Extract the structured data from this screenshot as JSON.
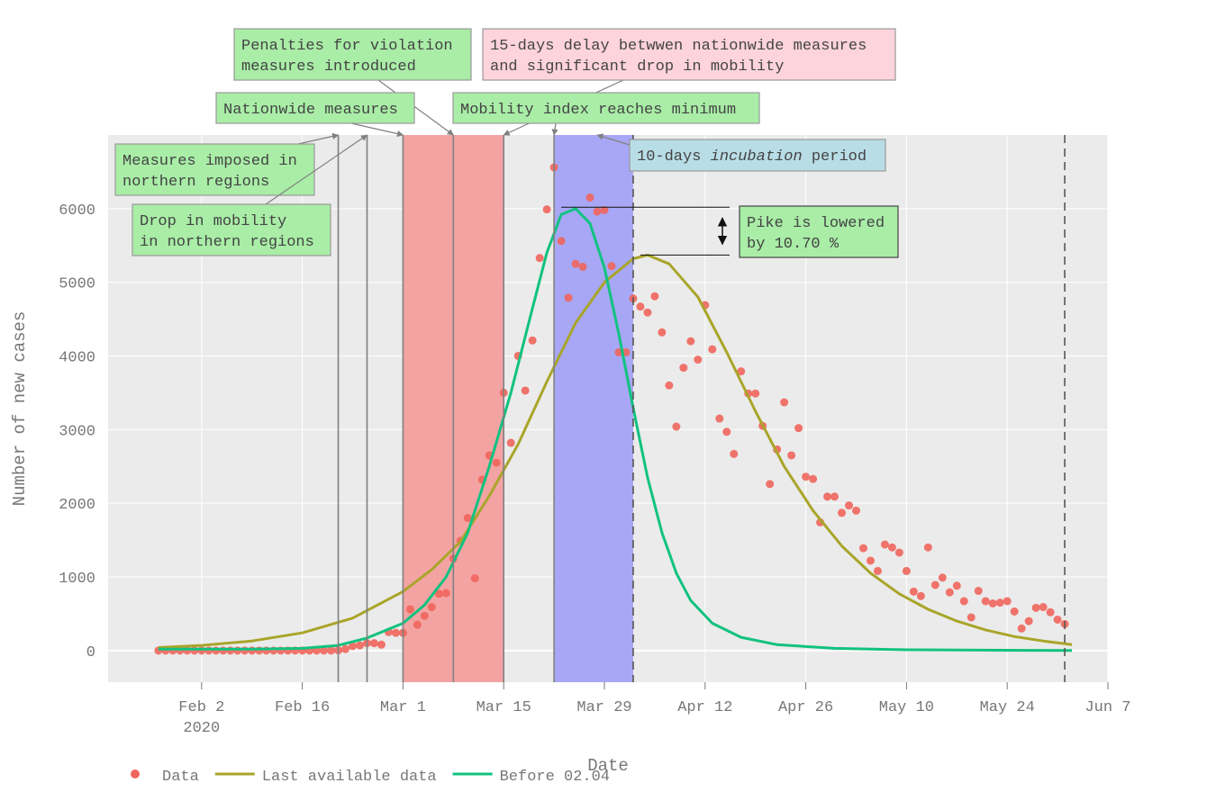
{
  "chart_data": {
    "type": "scatter",
    "xlabel": "Date",
    "ylabel": "Number of new cases",
    "x_range": [
      "2020-01-20",
      "2020-06-07"
    ],
    "ylim": [
      -430,
      7000
    ],
    "x_ticks": [
      {
        "date": "2020-02-02",
        "label": "Feb 2",
        "sublabel": "2020"
      },
      {
        "date": "2020-02-16",
        "label": "Feb 16"
      },
      {
        "date": "2020-03-01",
        "label": "Mar 1"
      },
      {
        "date": "2020-03-15",
        "label": "Mar 15"
      },
      {
        "date": "2020-03-29",
        "label": "Mar 29"
      },
      {
        "date": "2020-04-12",
        "label": "Apr 12"
      },
      {
        "date": "2020-04-26",
        "label": "Apr 26"
      },
      {
        "date": "2020-05-10",
        "label": "May 10"
      },
      {
        "date": "2020-05-24",
        "label": "May 24"
      },
      {
        "date": "2020-06-07",
        "label": "Jun 7"
      }
    ],
    "y_ticks": [
      0,
      1000,
      2000,
      3000,
      4000,
      5000,
      6000
    ],
    "grid": true,
    "legend_position": "bottom-left",
    "series": [
      {
        "name": "Data",
        "kind": "markers",
        "color": "#f0665c",
        "points": [
          [
            "2020-01-27",
            0
          ],
          [
            "2020-01-28",
            0
          ],
          [
            "2020-01-29",
            0
          ],
          [
            "2020-01-30",
            0
          ],
          [
            "2020-01-31",
            0
          ],
          [
            "2020-02-01",
            0
          ],
          [
            "2020-02-02",
            0
          ],
          [
            "2020-02-03",
            0
          ],
          [
            "2020-02-04",
            0
          ],
          [
            "2020-02-05",
            0
          ],
          [
            "2020-02-06",
            0
          ],
          [
            "2020-02-07",
            0
          ],
          [
            "2020-02-08",
            0
          ],
          [
            "2020-02-09",
            0
          ],
          [
            "2020-02-10",
            0
          ],
          [
            "2020-02-11",
            0
          ],
          [
            "2020-02-12",
            0
          ],
          [
            "2020-02-13",
            0
          ],
          [
            "2020-02-14",
            0
          ],
          [
            "2020-02-15",
            0
          ],
          [
            "2020-02-16",
            0
          ],
          [
            "2020-02-17",
            0
          ],
          [
            "2020-02-18",
            0
          ],
          [
            "2020-02-19",
            0
          ],
          [
            "2020-02-20",
            0
          ],
          [
            "2020-02-21",
            3
          ],
          [
            "2020-02-22",
            20
          ],
          [
            "2020-02-23",
            60
          ],
          [
            "2020-02-24",
            70
          ],
          [
            "2020-02-25",
            100
          ],
          [
            "2020-02-26",
            100
          ],
          [
            "2020-02-27",
            80
          ],
          [
            "2020-02-28",
            250
          ],
          [
            "2020-02-29",
            240
          ],
          [
            "2020-03-01",
            240
          ],
          [
            "2020-03-02",
            560
          ],
          [
            "2020-03-03",
            350
          ],
          [
            "2020-03-04",
            470
          ],
          [
            "2020-03-05",
            590
          ],
          [
            "2020-03-06",
            770
          ],
          [
            "2020-03-07",
            780
          ],
          [
            "2020-03-08",
            1250
          ],
          [
            "2020-03-09",
            1490
          ],
          [
            "2020-03-10",
            1800
          ],
          [
            "2020-03-11",
            980
          ],
          [
            "2020-03-12",
            2320
          ],
          [
            "2020-03-13",
            2650
          ],
          [
            "2020-03-14",
            2550
          ],
          [
            "2020-03-15",
            3500
          ],
          [
            "2020-03-16",
            2820
          ],
          [
            "2020-03-17",
            4000
          ],
          [
            "2020-03-18",
            3530
          ],
          [
            "2020-03-19",
            4210
          ],
          [
            "2020-03-20",
            5330
          ],
          [
            "2020-03-21",
            5990
          ],
          [
            "2020-03-22",
            6560
          ],
          [
            "2020-03-23",
            5560
          ],
          [
            "2020-03-24",
            4790
          ],
          [
            "2020-03-25",
            5250
          ],
          [
            "2020-03-26",
            5210
          ],
          [
            "2020-03-27",
            6150
          ],
          [
            "2020-03-28",
            5960
          ],
          [
            "2020-03-29",
            5980
          ],
          [
            "2020-03-30",
            5220
          ],
          [
            "2020-03-31",
            4050
          ],
          [
            "2020-04-01",
            4050
          ],
          [
            "2020-04-02",
            4780
          ],
          [
            "2020-04-03",
            4670
          ],
          [
            "2020-04-04",
            4590
          ],
          [
            "2020-04-05",
            4810
          ],
          [
            "2020-04-06",
            4320
          ],
          [
            "2020-04-07",
            3600
          ],
          [
            "2020-04-08",
            3040
          ],
          [
            "2020-04-09",
            3840
          ],
          [
            "2020-04-10",
            4200
          ],
          [
            "2020-04-11",
            3950
          ],
          [
            "2020-04-12",
            4690
          ],
          [
            "2020-04-13",
            4090
          ],
          [
            "2020-04-14",
            3150
          ],
          [
            "2020-04-15",
            2970
          ],
          [
            "2020-04-16",
            2670
          ],
          [
            "2020-04-17",
            3790
          ],
          [
            "2020-04-18",
            3490
          ],
          [
            "2020-04-19",
            3490
          ],
          [
            "2020-04-20",
            3050
          ],
          [
            "2020-04-21",
            2260
          ],
          [
            "2020-04-22",
            2730
          ],
          [
            "2020-04-23",
            3370
          ],
          [
            "2020-04-24",
            2650
          ],
          [
            "2020-04-25",
            3020
          ],
          [
            "2020-04-26",
            2360
          ],
          [
            "2020-04-27",
            2330
          ],
          [
            "2020-04-28",
            1740
          ],
          [
            "2020-04-29",
            2090
          ],
          [
            "2020-04-30",
            2090
          ],
          [
            "2020-05-01",
            1870
          ],
          [
            "2020-05-02",
            1970
          ],
          [
            "2020-05-03",
            1900
          ],
          [
            "2020-05-04",
            1390
          ],
          [
            "2020-05-05",
            1220
          ],
          [
            "2020-05-06",
            1080
          ],
          [
            "2020-05-07",
            1440
          ],
          [
            "2020-05-08",
            1400
          ],
          [
            "2020-05-09",
            1330
          ],
          [
            "2020-05-10",
            1080
          ],
          [
            "2020-05-11",
            800
          ],
          [
            "2020-05-12",
            740
          ],
          [
            "2020-05-13",
            1400
          ],
          [
            "2020-05-14",
            890
          ],
          [
            "2020-05-15",
            990
          ],
          [
            "2020-05-16",
            790
          ],
          [
            "2020-05-17",
            880
          ],
          [
            "2020-05-18",
            670
          ],
          [
            "2020-05-19",
            450
          ],
          [
            "2020-05-20",
            810
          ],
          [
            "2020-05-21",
            670
          ],
          [
            "2020-05-22",
            640
          ],
          [
            "2020-05-23",
            650
          ],
          [
            "2020-05-24",
            670
          ],
          [
            "2020-05-25",
            530
          ],
          [
            "2020-05-26",
            300
          ],
          [
            "2020-05-27",
            400
          ],
          [
            "2020-05-28",
            580
          ],
          [
            "2020-05-29",
            590
          ],
          [
            "2020-05-30",
            520
          ],
          [
            "2020-05-31",
            420
          ],
          [
            "2020-06-01",
            360
          ]
        ]
      },
      {
        "name": "Last available data",
        "kind": "line",
        "color": "#a9a52a",
        "points": [
          [
            "2020-01-27",
            40
          ],
          [
            "2020-02-02",
            70
          ],
          [
            "2020-02-09",
            130
          ],
          [
            "2020-02-16",
            240
          ],
          [
            "2020-02-23",
            440
          ],
          [
            "2020-03-01",
            800
          ],
          [
            "2020-03-05",
            1100
          ],
          [
            "2020-03-09",
            1480
          ],
          [
            "2020-03-13",
            2100
          ],
          [
            "2020-03-17",
            2800
          ],
          [
            "2020-03-21",
            3650
          ],
          [
            "2020-03-25",
            4450
          ],
          [
            "2020-03-29",
            5000
          ],
          [
            "2020-04-02",
            5320
          ],
          [
            "2020-04-04",
            5370
          ],
          [
            "2020-04-07",
            5250
          ],
          [
            "2020-04-11",
            4800
          ],
          [
            "2020-04-15",
            4050
          ],
          [
            "2020-04-19",
            3250
          ],
          [
            "2020-04-23",
            2500
          ],
          [
            "2020-04-27",
            1900
          ],
          [
            "2020-05-01",
            1420
          ],
          [
            "2020-05-05",
            1050
          ],
          [
            "2020-05-09",
            770
          ],
          [
            "2020-05-13",
            560
          ],
          [
            "2020-05-17",
            400
          ],
          [
            "2020-05-21",
            280
          ],
          [
            "2020-05-25",
            190
          ],
          [
            "2020-05-29",
            130
          ],
          [
            "2020-06-02",
            80
          ]
        ]
      },
      {
        "name": "Before 02.04",
        "kind": "line",
        "color": "#11c27f",
        "points": [
          [
            "2020-01-27",
            20
          ],
          [
            "2020-02-09",
            20
          ],
          [
            "2020-02-16",
            30
          ],
          [
            "2020-02-21",
            70
          ],
          [
            "2020-02-25",
            170
          ],
          [
            "2020-03-01",
            370
          ],
          [
            "2020-03-04",
            620
          ],
          [
            "2020-03-07",
            1000
          ],
          [
            "2020-03-10",
            1600
          ],
          [
            "2020-03-13",
            2500
          ],
          [
            "2020-03-16",
            3500
          ],
          [
            "2020-03-19",
            4650
          ],
          [
            "2020-03-21",
            5400
          ],
          [
            "2020-03-23",
            5920
          ],
          [
            "2020-03-25",
            6000
          ],
          [
            "2020-03-27",
            5800
          ],
          [
            "2020-03-29",
            5200
          ],
          [
            "2020-03-31",
            4300
          ],
          [
            "2020-04-02",
            3300
          ],
          [
            "2020-04-04",
            2350
          ],
          [
            "2020-04-06",
            1600
          ],
          [
            "2020-04-08",
            1050
          ],
          [
            "2020-04-10",
            680
          ],
          [
            "2020-04-13",
            370
          ],
          [
            "2020-04-17",
            180
          ],
          [
            "2020-04-22",
            80
          ],
          [
            "2020-04-30",
            30
          ],
          [
            "2020-05-10",
            10
          ],
          [
            "2020-06-02",
            0
          ]
        ]
      }
    ],
    "shaded_regions": [
      {
        "start": "2020-03-01",
        "end": "2020-03-15",
        "color": "#f4a3a3"
      },
      {
        "start": "2020-03-22",
        "end": "2020-04-02",
        "color": "#a7a7f5"
      }
    ],
    "vertical_lines": [
      {
        "date": "2020-02-21",
        "style": "solid"
      },
      {
        "date": "2020-02-25",
        "style": "solid"
      },
      {
        "date": "2020-03-01",
        "style": "solid"
      },
      {
        "date": "2020-03-08",
        "style": "solid"
      },
      {
        "date": "2020-03-15",
        "style": "solid"
      },
      {
        "date": "2020-03-22",
        "style": "solid"
      },
      {
        "date": "2020-04-02",
        "style": "dash"
      },
      {
        "date": "2020-06-01",
        "style": "dash"
      }
    ],
    "annotations": [
      {
        "lines": [
          "Penalties for violation",
          "measures introduced"
        ],
        "color": "#a9eda7",
        "arrow_date": "2020-03-08"
      },
      {
        "lines": [
          "15-days delay betwwen nationwide measures",
          "and significant drop in mobility"
        ],
        "color": "#fdd3dc",
        "arrow_date": "2020-03-15"
      },
      {
        "lines": [
          "Nationwide measures"
        ],
        "color": "#a9eda7",
        "arrow_date": "2020-03-01"
      },
      {
        "lines": [
          "Mobility index reaches minimum"
        ],
        "color": "#a9eda7",
        "arrow_date": "2020-03-22"
      },
      {
        "lines": [
          "Measures imposed in",
          "northern regions"
        ],
        "color": "#a9eda7",
        "arrow_date": "2020-02-21"
      },
      {
        "lines": [
          "Drop in mobility",
          "in northern regions"
        ],
        "color": "#a9eda7",
        "arrow_date": "2020-02-25"
      },
      {
        "lines": [
          "10-days |incubation| period"
        ],
        "color": "#b8dde6",
        "arrow_date": "2020-03-28"
      },
      {
        "lines": [
          "Pike is lowered",
          "by 10.70 %"
        ],
        "color": "#a9eda7",
        "peak_high": 6020,
        "peak_low": 5370
      }
    ]
  }
}
